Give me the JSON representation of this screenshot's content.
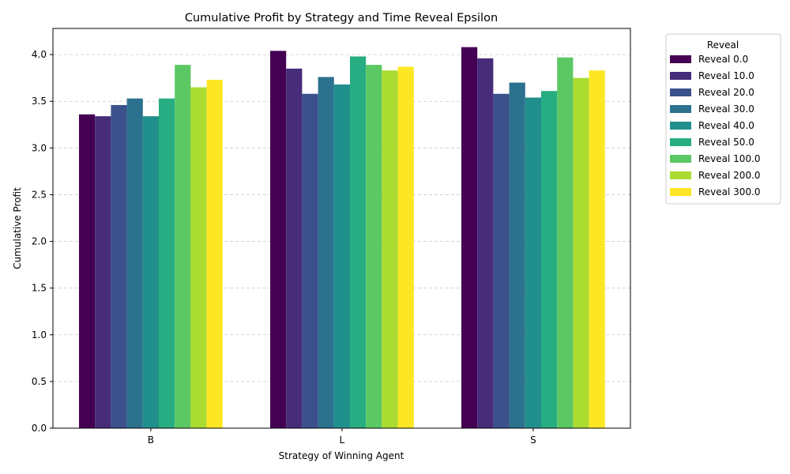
{
  "chart_data": {
    "type": "bar",
    "title": "Cumulative Profit by Strategy and Time Reveal Epsilon",
    "xlabel": "Strategy of Winning Agent",
    "ylabel": "Cumulative Profit",
    "ylim": [
      0,
      4.28
    ],
    "yticks": [
      "0.0",
      "0.5",
      "1.0",
      "1.5",
      "2.0",
      "2.5",
      "3.0",
      "3.5",
      "4.0"
    ],
    "grid": "y-dashed",
    "categories": [
      "B",
      "L",
      "S"
    ],
    "legend": {
      "title": "Reveal",
      "placement": "outside-right-top"
    },
    "series": [
      {
        "name": "Reveal 0.0",
        "color": "#440154",
        "values": [
          3.36,
          4.04,
          4.08
        ]
      },
      {
        "name": "Reveal 10.0",
        "color": "#472c7a",
        "values": [
          3.34,
          3.85,
          3.96
        ]
      },
      {
        "name": "Reveal 20.0",
        "color": "#3b518b",
        "values": [
          3.46,
          3.58,
          3.58
        ]
      },
      {
        "name": "Reveal 30.0",
        "color": "#2c718e",
        "values": [
          3.53,
          3.76,
          3.7
        ]
      },
      {
        "name": "Reveal 40.0",
        "color": "#21908d",
        "values": [
          3.34,
          3.68,
          3.54
        ]
      },
      {
        "name": "Reveal 50.0",
        "color": "#27ad81",
        "values": [
          3.53,
          3.98,
          3.61
        ]
      },
      {
        "name": "Reveal 100.0",
        "color": "#5cc863",
        "values": [
          3.89,
          3.89,
          3.97
        ]
      },
      {
        "name": "Reveal 200.0",
        "color": "#aadc32",
        "values": [
          3.65,
          3.83,
          3.75
        ]
      },
      {
        "name": "Reveal 300.0",
        "color": "#fde725",
        "values": [
          3.73,
          3.87,
          3.83
        ]
      }
    ]
  }
}
